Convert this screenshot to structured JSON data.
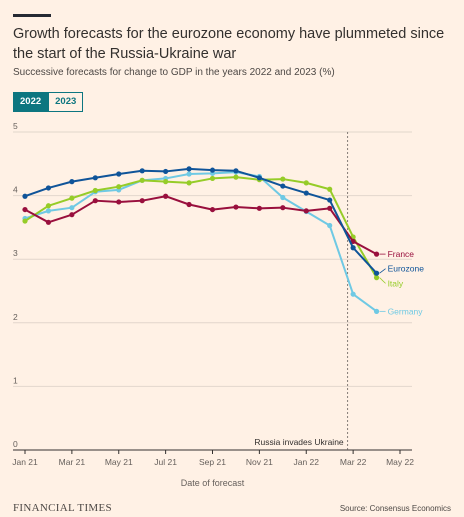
{
  "header": {
    "title": "Growth forecasts for the eurozone economy have plummeted since the start of the Russia-Ukraine war",
    "subtitle": "Successive forecasts for change to GDP in the years 2022 and 2023 (%)"
  },
  "tabs": [
    {
      "label": "2022",
      "active": true
    },
    {
      "label": "2023",
      "active": false
    }
  ],
  "footer": {
    "logo": "FINANCIAL TIMES",
    "source": "Source: Consensus Economics"
  },
  "colors": {
    "France": "#990f3d",
    "Eurozone": "#0f5499",
    "Italy": "#96cc28",
    "Germany": "#6fc9e4",
    "grid": "#e2d6cc",
    "axis": "#66605c",
    "annotation": "#66605c"
  },
  "chart_data": {
    "type": "line",
    "title": "Growth forecasts for the eurozone economy have plummeted since the start of the Russia-Ukraine war",
    "subtitle": "Successive forecasts for change to GDP in the years 2022 and 2023 (%)",
    "xlabel": "Date of forecast",
    "ylabel": "",
    "ylim": [
      0,
      5
    ],
    "yticks": [
      0,
      1,
      2,
      3,
      4,
      5
    ],
    "x_range": [
      "2021-01",
      "2022-05"
    ],
    "xticks": [
      "2021-01",
      "2021-03",
      "2021-05",
      "2021-07",
      "2021-09",
      "2021-11",
      "2022-01",
      "2022-03",
      "2022-05"
    ],
    "xtick_labels": [
      "Jan 21",
      "Mar 21",
      "May 21",
      "Jul 21",
      "Sep 21",
      "Nov 21",
      "Jan 22",
      "Mar 22",
      "May 22"
    ],
    "grid": true,
    "legend": "inline labels at line ends",
    "annotation": {
      "x": "2022-02-24",
      "label": "Russia invades Ukraine"
    },
    "x": [
      "2021-01",
      "2021-02",
      "2021-03",
      "2021-04",
      "2021-05",
      "2021-06",
      "2021-07",
      "2021-08",
      "2021-09",
      "2021-10",
      "2021-11",
      "2021-12",
      "2022-01",
      "2022-02",
      "2022-03",
      "2022-04"
    ],
    "series": [
      {
        "name": "France",
        "values": [
          3.78,
          3.58,
          3.7,
          3.92,
          3.9,
          3.92,
          3.99,
          3.86,
          3.78,
          3.82,
          3.8,
          3.81,
          3.76,
          3.8,
          3.28,
          3.08
        ]
      },
      {
        "name": "Eurozone",
        "values": [
          3.99,
          4.12,
          4.22,
          4.28,
          4.34,
          4.39,
          4.38,
          4.42,
          4.4,
          4.39,
          4.28,
          4.15,
          4.04,
          3.93,
          3.18,
          2.78
        ]
      },
      {
        "name": "Italy",
        "values": [
          3.6,
          3.84,
          3.96,
          4.08,
          4.14,
          4.24,
          4.22,
          4.2,
          4.27,
          4.29,
          4.25,
          4.26,
          4.2,
          4.1,
          3.35,
          2.71
        ]
      },
      {
        "name": "Germany",
        "values": [
          3.64,
          3.76,
          3.81,
          4.06,
          4.09,
          4.24,
          4.27,
          4.34,
          4.35,
          4.37,
          4.3,
          3.97,
          3.75,
          3.53,
          2.45,
          2.18
        ]
      }
    ]
  }
}
